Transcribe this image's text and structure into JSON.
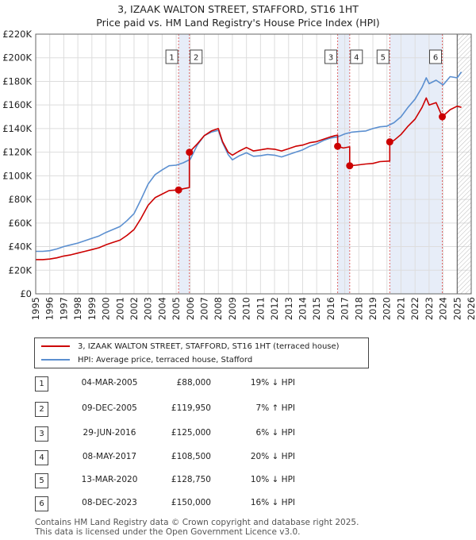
{
  "title": {
    "line1": "3, IZAAK WALTON STREET, STAFFORD, ST16 1HT",
    "line2": "Price paid vs. HM Land Registry's House Price Index (HPI)"
  },
  "legend": {
    "property": "3, IZAAK WALTON STREET, STAFFORD, ST16 1HT (terraced house)",
    "hpi": "HPI: Average price, terraced house, Stafford"
  },
  "colors": {
    "property": "#cc0000",
    "hpi": "#5b8fd0",
    "band": "#dde6f5",
    "vline": "#e06666",
    "grid": "#dddddd",
    "future_hatch": "#bbbbbb"
  },
  "transactions": [
    {
      "num": "1",
      "date": "04-MAR-2005",
      "price": "£88,000",
      "hpi": "19% ↓ HPI"
    },
    {
      "num": "2",
      "date": "09-DEC-2005",
      "price": "£119,950",
      "hpi": "7% ↑ HPI"
    },
    {
      "num": "3",
      "date": "29-JUN-2016",
      "price": "£125,000",
      "hpi": "6% ↓ HPI"
    },
    {
      "num": "4",
      "date": "08-MAY-2017",
      "price": "£108,500",
      "hpi": "20% ↓ HPI"
    },
    {
      "num": "5",
      "date": "13-MAR-2020",
      "price": "£128,750",
      "hpi": "10% ↓ HPI"
    },
    {
      "num": "6",
      "date": "08-DEC-2023",
      "price": "£150,000",
      "hpi": "16% ↓ HPI"
    }
  ],
  "footer": {
    "line1": "Contains HM Land Registry data © Crown copyright and database right 2025.",
    "line2": "This data is licensed under the Open Government Licence v3.0."
  },
  "chart_data": {
    "type": "line",
    "title": "3, IZAAK WALTON STREET, STAFFORD, ST16 1HT — Price paid vs. HM Land Registry's House Price Index (HPI)",
    "xlabel": "",
    "ylabel": "",
    "xlim": [
      1995,
      2026
    ],
    "ylim": [
      0,
      220000
    ],
    "y_ticks": [
      0,
      20000,
      40000,
      60000,
      80000,
      100000,
      120000,
      140000,
      160000,
      180000,
      200000,
      220000
    ],
    "y_tick_labels": [
      "£0",
      "£20K",
      "£40K",
      "£60K",
      "£80K",
      "£100K",
      "£120K",
      "£140K",
      "£160K",
      "£180K",
      "£200K",
      "£220K"
    ],
    "x_ticks": [
      1995,
      1996,
      1997,
      1998,
      1999,
      2000,
      2001,
      2002,
      2003,
      2004,
      2005,
      2006,
      2007,
      2008,
      2009,
      2010,
      2011,
      2012,
      2013,
      2014,
      2015,
      2016,
      2017,
      2018,
      2019,
      2020,
      2021,
      2022,
      2023,
      2024,
      2025,
      2026
    ],
    "x_tick_labels": [
      "1995",
      "1996",
      "1997",
      "1998",
      "1999",
      "2000",
      "2001",
      "2002",
      "2003",
      "2004",
      "2005",
      "2006",
      "2007",
      "2008",
      "2009",
      "2010",
      "2011",
      "2012",
      "2013",
      "2014",
      "2015",
      "2016",
      "2017",
      "2018",
      "2019",
      "2020",
      "2021",
      "2022",
      "2023",
      "2024",
      "2025",
      "2026"
    ],
    "grid": true,
    "legend_position": "below",
    "shaded_bands": [
      [
        2005.17,
        2005.94
      ],
      [
        2016.49,
        2017.35
      ],
      [
        2020.2,
        2023.94
      ]
    ],
    "future_start": 2025.0,
    "sales": [
      {
        "label": "1",
        "x": 2005.17,
        "y": 88000
      },
      {
        "label": "2",
        "x": 2005.94,
        "y": 119950
      },
      {
        "label": "3",
        "x": 2016.49,
        "y": 125000
      },
      {
        "label": "4",
        "x": 2017.35,
        "y": 108500
      },
      {
        "label": "5",
        "x": 2020.2,
        "y": 128750
      },
      {
        "label": "6",
        "x": 2023.94,
        "y": 150000
      }
    ],
    "series": [
      {
        "name": "HPI: Average price, terraced house, Stafford",
        "x": [
          1995,
          1995.5,
          1996,
          1996.5,
          1997,
          1997.5,
          1998,
          1998.5,
          1999,
          1999.5,
          2000,
          2000.5,
          2001,
          2001.5,
          2002,
          2002.5,
          2003,
          2003.5,
          2004,
          2004.5,
          2005,
          2005.5,
          2006,
          2006.5,
          2007,
          2007.5,
          2008,
          2008.3,
          2008.7,
          2009,
          2009.5,
          2010,
          2010.5,
          2011,
          2011.5,
          2012,
          2012.5,
          2013,
          2013.5,
          2014,
          2014.5,
          2015,
          2015.5,
          2016,
          2016.5,
          2017,
          2017.5,
          2018,
          2018.5,
          2019,
          2019.5,
          2020,
          2020.5,
          2021,
          2021.5,
          2022,
          2022.5,
          2022.8,
          2023,
          2023.5,
          2024,
          2024.5,
          2025,
          2025.3
        ],
        "values": [
          36000,
          36000,
          36500,
          38000,
          40000,
          41500,
          43000,
          45000,
          47000,
          49000,
          52000,
          54500,
          57000,
          62000,
          68000,
          80000,
          93000,
          101000,
          105000,
          108500,
          109000,
          111000,
          114000,
          126000,
          134000,
          137000,
          138500,
          128000,
          118000,
          113500,
          117000,
          119500,
          116500,
          117000,
          118000,
          117500,
          116000,
          118000,
          120000,
          122000,
          125000,
          127000,
          130000,
          132000,
          133000,
          135500,
          137000,
          137500,
          138000,
          140000,
          141500,
          142000,
          145000,
          150000,
          158000,
          165000,
          175000,
          183000,
          178000,
          181000,
          177000,
          184000,
          183000,
          188000
        ]
      },
      {
        "name": "3, IZAAK WALTON STREET, STAFFORD, ST16 1HT (terraced house)",
        "x": [
          1995,
          1995.5,
          1996,
          1996.5,
          1997,
          1997.5,
          1998,
          1998.5,
          1999,
          1999.5,
          2000,
          2000.5,
          2001,
          2001.5,
          2002,
          2002.5,
          2003,
          2003.5,
          2004,
          2004.5,
          2005.17,
          2005.17,
          2005.5,
          2005.94,
          2005.94,
          2006.5,
          2007,
          2007.5,
          2008,
          2008.3,
          2008.7,
          2009,
          2009.5,
          2010,
          2010.5,
          2011,
          2011.5,
          2012,
          2012.5,
          2013,
          2013.5,
          2014,
          2014.5,
          2015,
          2015.5,
          2016,
          2016.3,
          2016.49,
          2016.49,
          2016.9,
          2017.35,
          2017.35,
          2017.8,
          2018.5,
          2019,
          2019.5,
          2020.2,
          2020.2,
          2020.5,
          2021,
          2021.5,
          2022,
          2022.5,
          2022.8,
          2023,
          2023.5,
          2023.94,
          2023.94,
          2024.5,
          2025,
          2025.3
        ],
        "values": [
          29000,
          29000,
          29500,
          30500,
          32000,
          33000,
          34500,
          36000,
          37500,
          39000,
          41500,
          43500,
          45500,
          49500,
          54500,
          64000,
          75000,
          81500,
          84500,
          87500,
          88000,
          88000,
          89000,
          90000,
          119950,
          127000,
          134000,
          138000,
          140000,
          129000,
          120000,
          117500,
          121000,
          124000,
          121000,
          122000,
          123000,
          122500,
          121000,
          123000,
          125000,
          126000,
          128000,
          129000,
          131000,
          133000,
          134000,
          134500,
          125000,
          123500,
          124500,
          108500,
          109000,
          110000,
          110500,
          112000,
          112500,
          128750,
          130000,
          135000,
          142000,
          148000,
          158000,
          166000,
          160000,
          162000,
          150000,
          150000,
          156000,
          159000,
          158000
        ]
      }
    ]
  }
}
